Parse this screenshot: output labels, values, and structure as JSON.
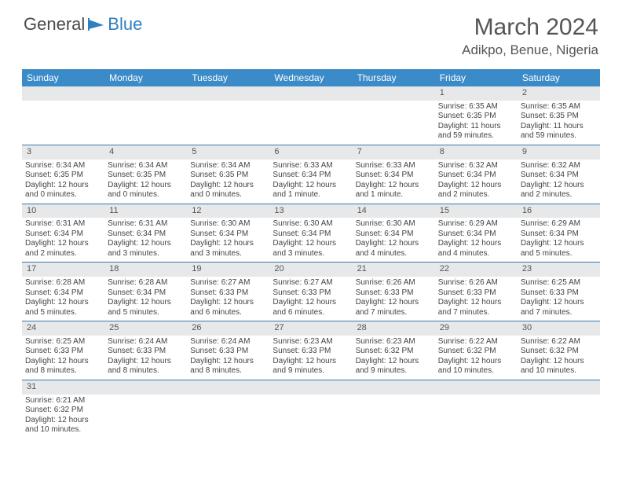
{
  "logo": {
    "text1": "General",
    "text2": "Blue"
  },
  "title": "March 2024",
  "location": "Adikpo, Benue, Nigeria",
  "colors": {
    "header_bg": "#3b8bc9",
    "header_text": "#ffffff",
    "daynum_bg": "#e7e8e9",
    "border": "#3b78b0",
    "text": "#444444",
    "logo_gray": "#4a4a4a",
    "logo_blue": "#2f7fc1"
  },
  "days": [
    "Sunday",
    "Monday",
    "Tuesday",
    "Wednesday",
    "Thursday",
    "Friday",
    "Saturday"
  ],
  "weeks": [
    [
      null,
      null,
      null,
      null,
      null,
      {
        "n": "1",
        "sunrise": "Sunrise: 6:35 AM",
        "sunset": "Sunset: 6:35 PM",
        "daylight": "Daylight: 11 hours and 59 minutes."
      },
      {
        "n": "2",
        "sunrise": "Sunrise: 6:35 AM",
        "sunset": "Sunset: 6:35 PM",
        "daylight": "Daylight: 11 hours and 59 minutes."
      }
    ],
    [
      {
        "n": "3",
        "sunrise": "Sunrise: 6:34 AM",
        "sunset": "Sunset: 6:35 PM",
        "daylight": "Daylight: 12 hours and 0 minutes."
      },
      {
        "n": "4",
        "sunrise": "Sunrise: 6:34 AM",
        "sunset": "Sunset: 6:35 PM",
        "daylight": "Daylight: 12 hours and 0 minutes."
      },
      {
        "n": "5",
        "sunrise": "Sunrise: 6:34 AM",
        "sunset": "Sunset: 6:35 PM",
        "daylight": "Daylight: 12 hours and 0 minutes."
      },
      {
        "n": "6",
        "sunrise": "Sunrise: 6:33 AM",
        "sunset": "Sunset: 6:34 PM",
        "daylight": "Daylight: 12 hours and 1 minute."
      },
      {
        "n": "7",
        "sunrise": "Sunrise: 6:33 AM",
        "sunset": "Sunset: 6:34 PM",
        "daylight": "Daylight: 12 hours and 1 minute."
      },
      {
        "n": "8",
        "sunrise": "Sunrise: 6:32 AM",
        "sunset": "Sunset: 6:34 PM",
        "daylight": "Daylight: 12 hours and 2 minutes."
      },
      {
        "n": "9",
        "sunrise": "Sunrise: 6:32 AM",
        "sunset": "Sunset: 6:34 PM",
        "daylight": "Daylight: 12 hours and 2 minutes."
      }
    ],
    [
      {
        "n": "10",
        "sunrise": "Sunrise: 6:31 AM",
        "sunset": "Sunset: 6:34 PM",
        "daylight": "Daylight: 12 hours and 2 minutes."
      },
      {
        "n": "11",
        "sunrise": "Sunrise: 6:31 AM",
        "sunset": "Sunset: 6:34 PM",
        "daylight": "Daylight: 12 hours and 3 minutes."
      },
      {
        "n": "12",
        "sunrise": "Sunrise: 6:30 AM",
        "sunset": "Sunset: 6:34 PM",
        "daylight": "Daylight: 12 hours and 3 minutes."
      },
      {
        "n": "13",
        "sunrise": "Sunrise: 6:30 AM",
        "sunset": "Sunset: 6:34 PM",
        "daylight": "Daylight: 12 hours and 3 minutes."
      },
      {
        "n": "14",
        "sunrise": "Sunrise: 6:30 AM",
        "sunset": "Sunset: 6:34 PM",
        "daylight": "Daylight: 12 hours and 4 minutes."
      },
      {
        "n": "15",
        "sunrise": "Sunrise: 6:29 AM",
        "sunset": "Sunset: 6:34 PM",
        "daylight": "Daylight: 12 hours and 4 minutes."
      },
      {
        "n": "16",
        "sunrise": "Sunrise: 6:29 AM",
        "sunset": "Sunset: 6:34 PM",
        "daylight": "Daylight: 12 hours and 5 minutes."
      }
    ],
    [
      {
        "n": "17",
        "sunrise": "Sunrise: 6:28 AM",
        "sunset": "Sunset: 6:34 PM",
        "daylight": "Daylight: 12 hours and 5 minutes."
      },
      {
        "n": "18",
        "sunrise": "Sunrise: 6:28 AM",
        "sunset": "Sunset: 6:34 PM",
        "daylight": "Daylight: 12 hours and 5 minutes."
      },
      {
        "n": "19",
        "sunrise": "Sunrise: 6:27 AM",
        "sunset": "Sunset: 6:33 PM",
        "daylight": "Daylight: 12 hours and 6 minutes."
      },
      {
        "n": "20",
        "sunrise": "Sunrise: 6:27 AM",
        "sunset": "Sunset: 6:33 PM",
        "daylight": "Daylight: 12 hours and 6 minutes."
      },
      {
        "n": "21",
        "sunrise": "Sunrise: 6:26 AM",
        "sunset": "Sunset: 6:33 PM",
        "daylight": "Daylight: 12 hours and 7 minutes."
      },
      {
        "n": "22",
        "sunrise": "Sunrise: 6:26 AM",
        "sunset": "Sunset: 6:33 PM",
        "daylight": "Daylight: 12 hours and 7 minutes."
      },
      {
        "n": "23",
        "sunrise": "Sunrise: 6:25 AM",
        "sunset": "Sunset: 6:33 PM",
        "daylight": "Daylight: 12 hours and 7 minutes."
      }
    ],
    [
      {
        "n": "24",
        "sunrise": "Sunrise: 6:25 AM",
        "sunset": "Sunset: 6:33 PM",
        "daylight": "Daylight: 12 hours and 8 minutes."
      },
      {
        "n": "25",
        "sunrise": "Sunrise: 6:24 AM",
        "sunset": "Sunset: 6:33 PM",
        "daylight": "Daylight: 12 hours and 8 minutes."
      },
      {
        "n": "26",
        "sunrise": "Sunrise: 6:24 AM",
        "sunset": "Sunset: 6:33 PM",
        "daylight": "Daylight: 12 hours and 8 minutes."
      },
      {
        "n": "27",
        "sunrise": "Sunrise: 6:23 AM",
        "sunset": "Sunset: 6:33 PM",
        "daylight": "Daylight: 12 hours and 9 minutes."
      },
      {
        "n": "28",
        "sunrise": "Sunrise: 6:23 AM",
        "sunset": "Sunset: 6:32 PM",
        "daylight": "Daylight: 12 hours and 9 minutes."
      },
      {
        "n": "29",
        "sunrise": "Sunrise: 6:22 AM",
        "sunset": "Sunset: 6:32 PM",
        "daylight": "Daylight: 12 hours and 10 minutes."
      },
      {
        "n": "30",
        "sunrise": "Sunrise: 6:22 AM",
        "sunset": "Sunset: 6:32 PM",
        "daylight": "Daylight: 12 hours and 10 minutes."
      }
    ],
    [
      {
        "n": "31",
        "sunrise": "Sunrise: 6:21 AM",
        "sunset": "Sunset: 6:32 PM",
        "daylight": "Daylight: 12 hours and 10 minutes."
      },
      null,
      null,
      null,
      null,
      null,
      null
    ]
  ]
}
